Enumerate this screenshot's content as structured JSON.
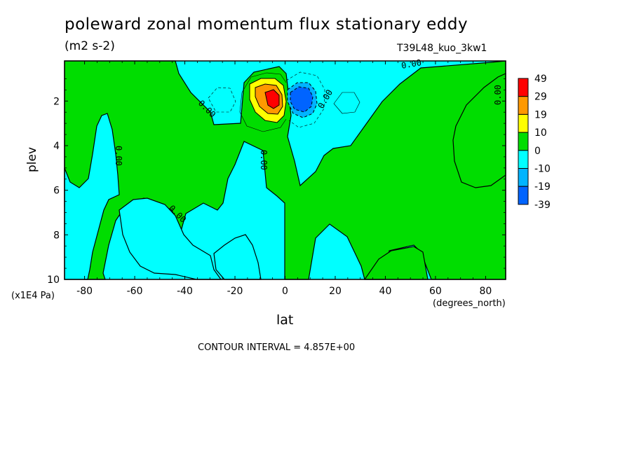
{
  "header": {
    "title": "poleward zonal momentum flux stationary eddy",
    "units": "(m2 s-2)",
    "run_id": "T39L48_kuo_3kw1",
    "contour_interval": "CONTOUR INTERVAL = 4.857E+00"
  },
  "chart_data": {
    "type": "heatmap",
    "title": "poleward zonal momentum flux stationary eddy",
    "xlabel": "lat",
    "xunit": "(degrees_north)",
    "ylabel": "plev",
    "yunit": "(x1E4 Pa)",
    "xlim": [
      -88,
      88
    ],
    "ylim": [
      10,
      0.2
    ],
    "y_inverted": true,
    "x_ticks": [
      -80,
      -60,
      -40,
      -20,
      0,
      20,
      40,
      60,
      80
    ],
    "y_ticks": [
      2,
      4,
      6,
      8,
      10
    ],
    "colorbar": {
      "levels": [
        "49",
        "29",
        "19",
        "10",
        "0",
        "-10",
        "-19",
        "-39"
      ],
      "colors": [
        "#ff0000",
        "#ff9900",
        "#ffff00",
        "#00dd00",
        "#00ffff",
        "#00b4ff",
        "#0064ff"
      ]
    },
    "contour_labels": [
      "0.00",
      "0.00",
      "0.00",
      "0.00",
      "0.00",
      "0.00",
      "0.00"
    ],
    "features": [
      {
        "type": "max",
        "lat": -6,
        "plev": 1.8,
        "value": 49
      },
      {
        "type": "min",
        "lat": 7,
        "plev": 1.8,
        "value": -39
      }
    ]
  },
  "colors": {
    "positive_fill": "#00dd00",
    "negative_fill": "#00ffff"
  }
}
